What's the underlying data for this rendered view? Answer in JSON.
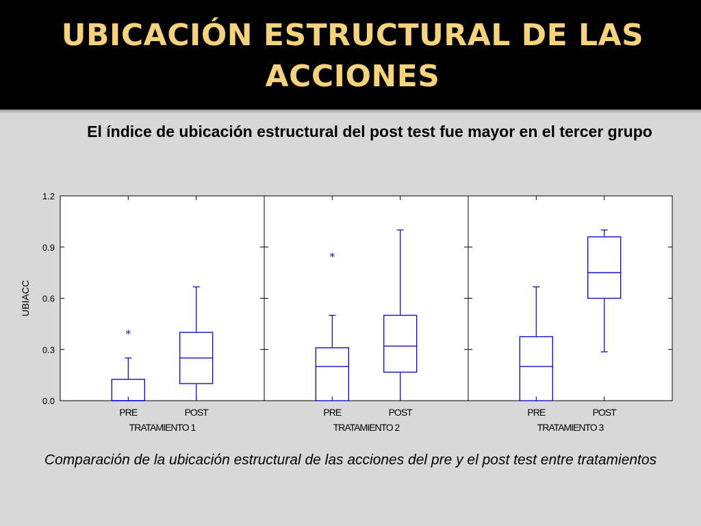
{
  "slide": {
    "title_line1": "UBICACIÓN ESTRUCTURAL DE LAS",
    "title_line2": "ACCIONES",
    "subtitle": "El índice de ubicación estructural del post test fue mayor en el tercer grupo",
    "caption": "Comparación de la ubicación estructural de las acciones del pre y el post test entre tratamientos"
  },
  "colors": {
    "title_text": "#f6d37a",
    "title_background": "#000000",
    "slide_background": "#d8d8d8",
    "box_stroke": "#1010c8"
  },
  "chart_data": {
    "type": "boxplot",
    "ylabel": "UBIACC",
    "ylim": [
      0,
      1.2
    ],
    "yticks": [
      "0.0",
      "0.3",
      "0.6",
      "0.9",
      "1.2"
    ],
    "ytick_values": [
      0,
      0.3,
      0.6,
      0.9,
      1.2
    ],
    "panels": [
      {
        "label": "TRATAMIENTO 1",
        "boxes": [
          {
            "category": "PRE",
            "min": 0.0,
            "q1": 0.0,
            "median": 0.0,
            "q3": 0.125,
            "max": 0.25,
            "outliers": [
              0.4
            ]
          },
          {
            "category": "POST",
            "min": 0.0,
            "q1": 0.1,
            "median": 0.25,
            "q3": 0.4,
            "max": 0.667,
            "outliers": []
          }
        ]
      },
      {
        "label": "TRATAMIENTO 2",
        "boxes": [
          {
            "category": "PRE",
            "min": 0.0,
            "q1": 0.0,
            "median": 0.2,
            "q3": 0.31,
            "max": 0.5,
            "outliers": [
              0.85
            ]
          },
          {
            "category": "POST",
            "min": 0.0,
            "q1": 0.167,
            "median": 0.32,
            "q3": 0.5,
            "max": 1.0,
            "outliers": []
          }
        ]
      },
      {
        "label": "TRATAMIENTO 3",
        "boxes": [
          {
            "category": "PRE",
            "min": 0.0,
            "q1": 0.0,
            "median": 0.2,
            "q3": 0.375,
            "max": 0.667,
            "outliers": []
          },
          {
            "category": "POST",
            "min": 0.286,
            "q1": 0.6,
            "median": 0.75,
            "q3": 0.96,
            "max": 1.0,
            "outliers": []
          }
        ]
      }
    ]
  }
}
